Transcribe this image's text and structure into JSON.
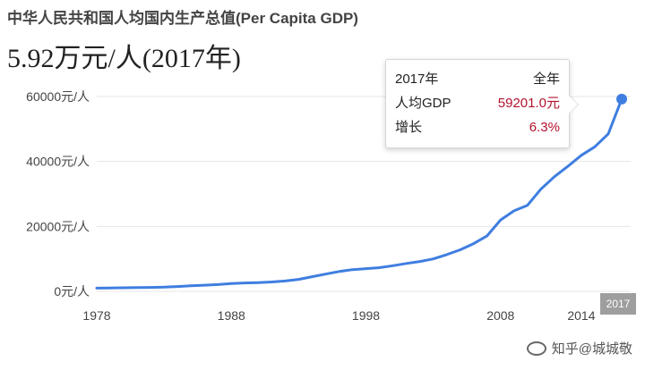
{
  "title": "中华人民共和国人均国内生产总值(Per Capita GDP)",
  "headline_value": "5.92万元/人(2017年)",
  "tooltip": {
    "year": "2017年",
    "period": "全年",
    "gdp_label": "人均GDP",
    "gdp_value": "59201.0元",
    "growth_label": "增长",
    "growth_value": "6.3%"
  },
  "end_badge": "2017",
  "watermark": "知乎@城城敬",
  "colors": {
    "line": "#3f7ee0",
    "grid": "#e6e6e6",
    "highlight": "#b3112e",
    "badge": "#9e9e9e"
  },
  "chart_data": {
    "type": "line",
    "title": "中华人民共和国人均国内生产总值(Per Capita GDP)",
    "xlabel": "",
    "ylabel": "",
    "x_ticks": [
      1978,
      1988,
      1998,
      2008,
      2014
    ],
    "y_ticks": [
      "0元/人",
      "20000元/人",
      "40000元/人",
      "60000元/人"
    ],
    "y_tick_values": [
      0,
      20000,
      40000,
      60000
    ],
    "xlim": [
      1978,
      2017
    ],
    "ylim": [
      0,
      60000
    ],
    "grid": true,
    "highlight_point": {
      "x": 2017,
      "y": 59201
    },
    "series": [
      {
        "x": [
          1978,
          1979,
          1980,
          1981,
          1982,
          1983,
          1984,
          1985,
          1986,
          1987,
          1988,
          1989,
          1990,
          1991,
          1992,
          1993,
          1994,
          1995,
          1996,
          1997,
          1998,
          1999,
          2000,
          2001,
          2002,
          2003,
          2004,
          2005,
          2006,
          2007,
          2008,
          2009,
          2010,
          2011,
          2012,
          2013,
          2014,
          2015,
          2016,
          2017
        ],
        "values": [
          1000,
          1050,
          1100,
          1150,
          1200,
          1300,
          1500,
          1700,
          1900,
          2100,
          2400,
          2600,
          2700,
          2900,
          3200,
          3700,
          4500,
          5300,
          6100,
          6700,
          7000,
          7300,
          7900,
          8600,
          9200,
          10000,
          11300,
          12800,
          14700,
          17100,
          22000,
          24800,
          26500,
          31500,
          35300,
          38500,
          41900,
          44500,
          48500,
          59201
        ]
      }
    ]
  }
}
